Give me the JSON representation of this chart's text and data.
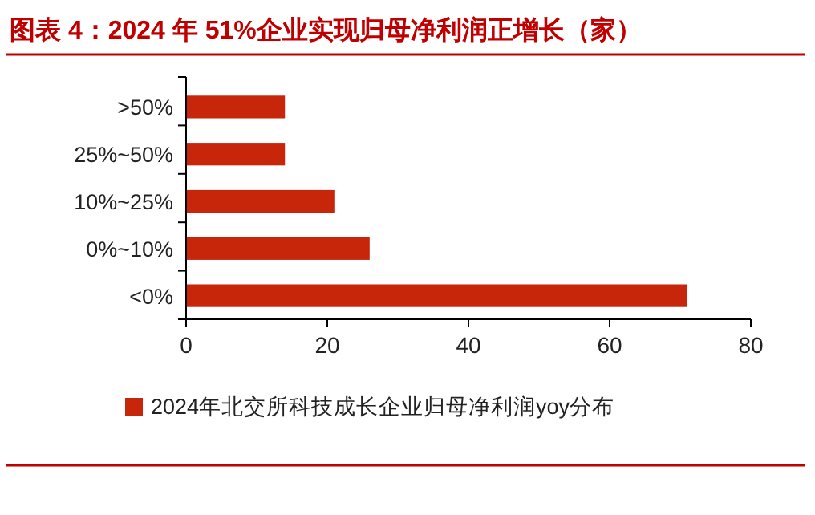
{
  "chart_data": {
    "type": "bar",
    "orientation": "horizontal",
    "title": "图表 4：2024 年 51%企业实现归母净利润正增长（家）",
    "categories": [
      ">50%",
      "25%~50%",
      "10%~25%",
      "0%~10%",
      "<0%"
    ],
    "series": [
      {
        "name": "2024年北交所科技成长企业归母净利润yoy分布",
        "color": "#c8260a",
        "values": [
          14,
          14,
          21,
          26,
          71
        ]
      }
    ],
    "xlim": [
      0,
      80
    ],
    "xticks": [
      0,
      20,
      40,
      60,
      80
    ],
    "grid": false,
    "legend": "bottom"
  }
}
